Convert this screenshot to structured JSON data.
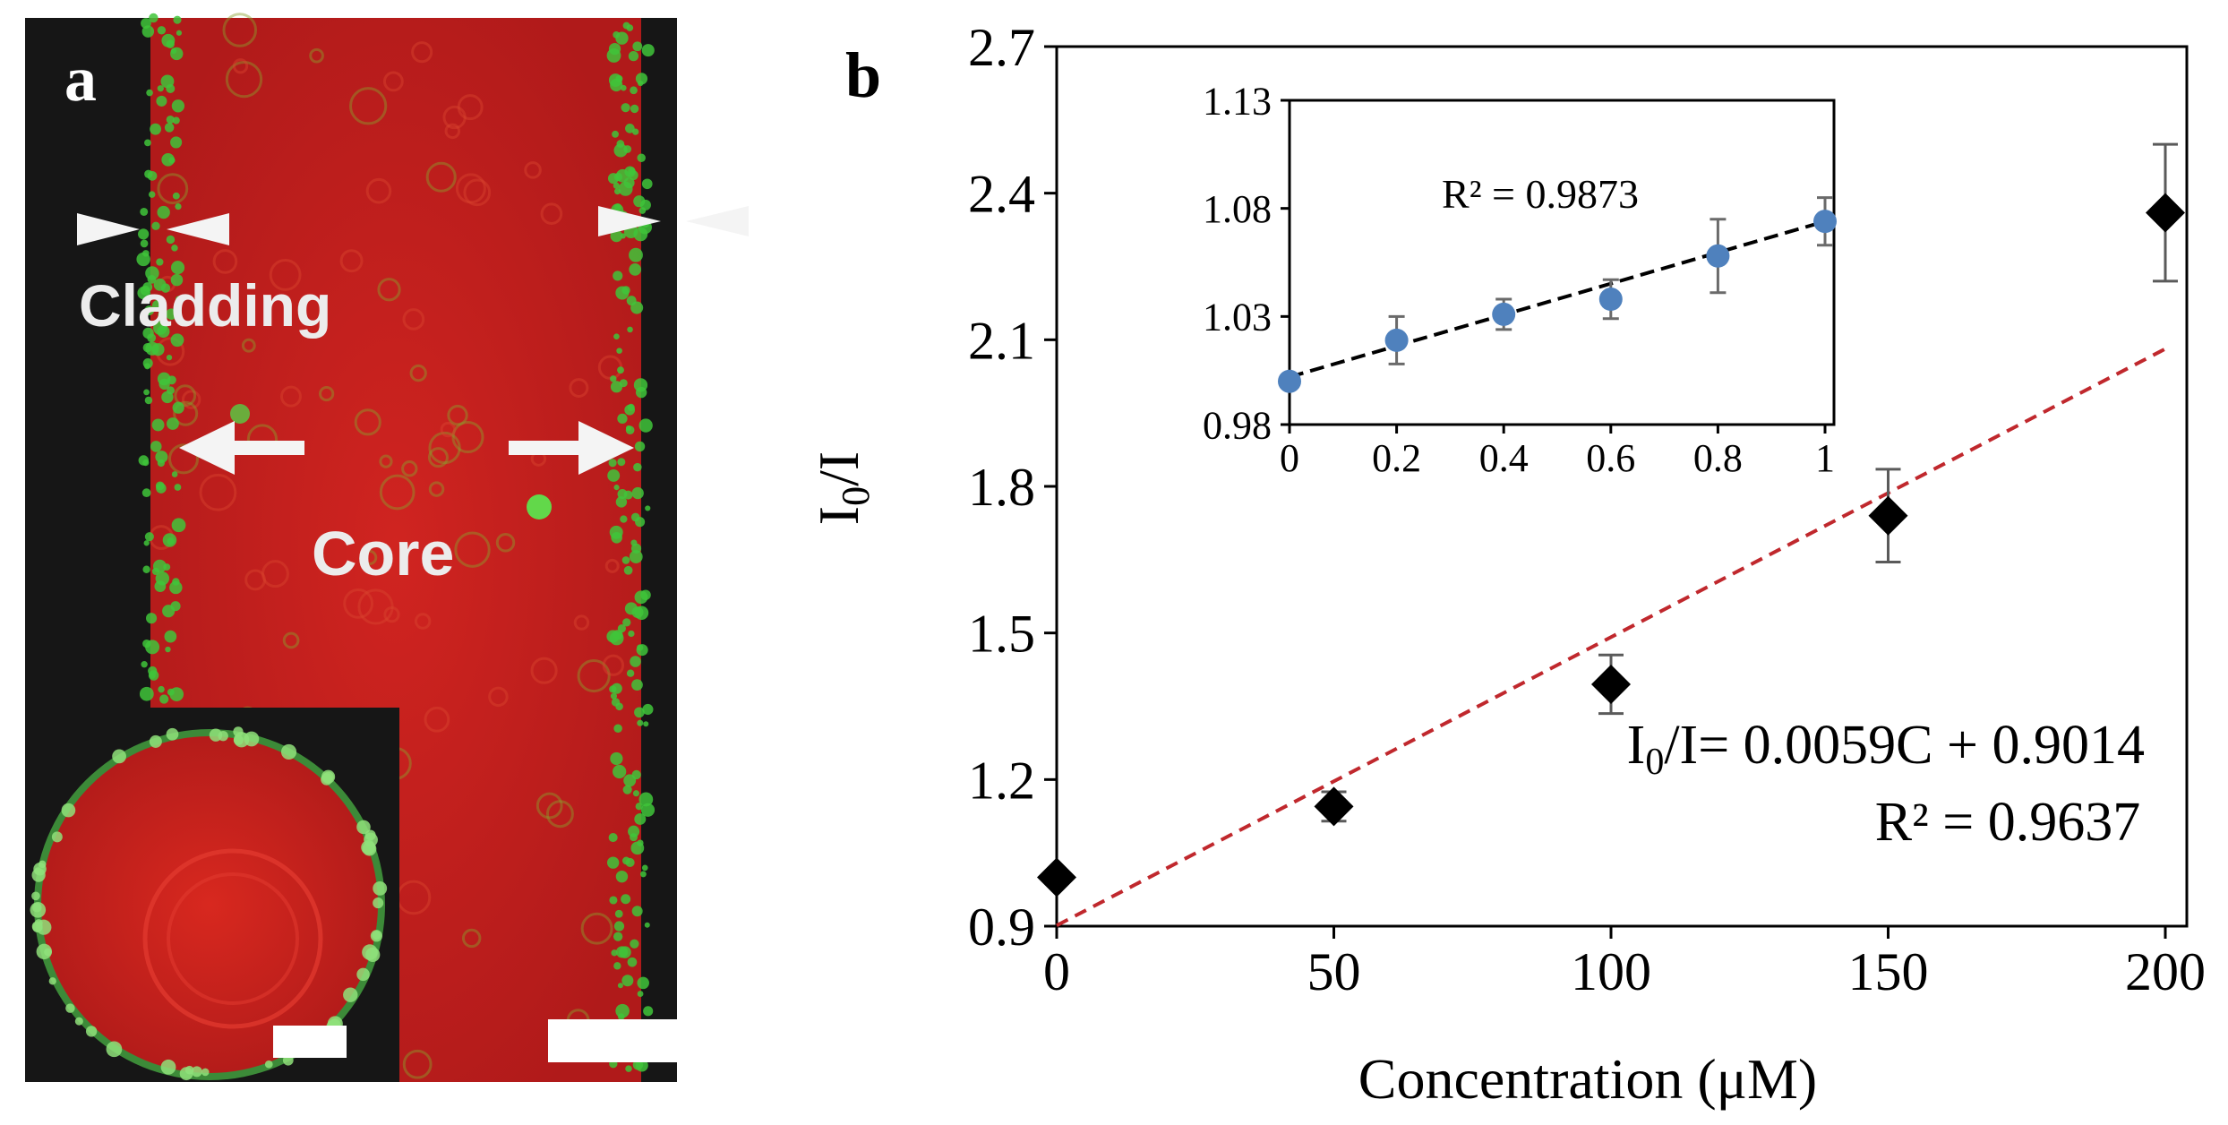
{
  "colors": {
    "core_red": "#c8201c",
    "core_red_dark": "#a8181a",
    "cladding_green": "#3fc43a",
    "background_black": "#161616",
    "main_marker": "#000000",
    "fit_main": "#c0282d",
    "inset_marker": "#4f81bd",
    "fit_inset": "#000000",
    "scale_bar": "#ffffff"
  },
  "panel_a": {
    "label": "a",
    "cladding_label": "Cladding",
    "core_label": "Core",
    "cladding_marker_icon": "arrowhead-pair-icon",
    "core_arrow_icon": "arrow-icon",
    "inset_image": "fiber-cross-section",
    "scale_bar_icon": "scale-bar-icon"
  },
  "chart_data": [
    {
      "panel_label": "b",
      "type": "scatter",
      "xlabel": "Concentration (μM)",
      "ylabel_main": "I",
      "ylabel_sub": "0",
      "ylabel_tail": "/I",
      "x": [
        0,
        50,
        100,
        150,
        200
      ],
      "y": [
        1.0,
        1.145,
        1.395,
        1.74,
        2.36
      ],
      "error": [
        0.0,
        0.03,
        0.06,
        0.095,
        0.14
      ],
      "xlim": [
        0,
        200
      ],
      "ylim": [
        0.9,
        2.7
      ],
      "xticks": [
        0,
        50,
        100,
        150,
        200
      ],
      "yticks": [
        0.9,
        1.2,
        1.5,
        1.8,
        2.1,
        2.4,
        2.7
      ],
      "ytick_labels": [
        "0.9",
        "1.2",
        "1.5",
        "1.8",
        "2.1",
        "2.4",
        "2.7"
      ],
      "grid": false,
      "fit": {
        "slope": 0.0059,
        "intercept": 0.9014,
        "x_range": [
          0,
          200
        ],
        "style": "dashed"
      },
      "equation_main": "I",
      "equation_sub": "0",
      "equation_tail": "/I= 0.0059C + 0.9014",
      "r2_label": "R² = 0.9637",
      "marker": "diamond"
    },
    {
      "type": "scatter",
      "x": [
        0,
        0.2,
        0.4,
        0.6,
        0.8,
        1.0
      ],
      "xtick_labels": [
        "0",
        "0.2",
        "0.4",
        "0.6",
        "0.8",
        "1"
      ],
      "y": [
        1.0,
        1.019,
        1.031,
        1.038,
        1.058,
        1.074
      ],
      "error": [
        0.0,
        0.011,
        0.007,
        0.009,
        0.017,
        0.011
      ],
      "xlim": [
        0,
        1
      ],
      "ylim": [
        0.98,
        1.13
      ],
      "xticks": [
        0,
        0.2,
        0.4,
        0.6,
        0.8,
        1.0
      ],
      "yticks": [
        0.98,
        1.03,
        1.08,
        1.13
      ],
      "ytick_labels": [
        "0.98",
        "1.03",
        "1.08",
        "1.13"
      ],
      "grid": false,
      "fit": {
        "slope": 0.072,
        "intercept": 1.002,
        "x_range": [
          0,
          1
        ],
        "style": "dashed"
      },
      "r2_label": "R² = 0.9873",
      "marker": "circle",
      "placement": "inset-top-left"
    }
  ]
}
